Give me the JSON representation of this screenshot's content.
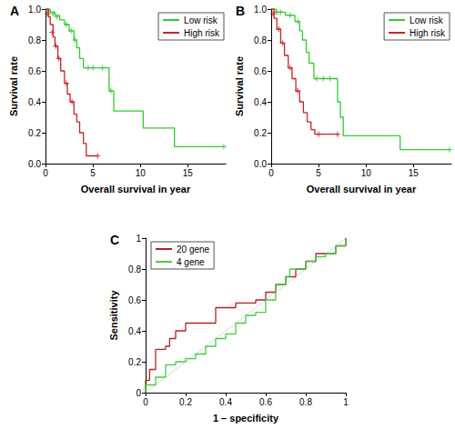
{
  "chart_data": [
    {
      "type": "line",
      "title": "A",
      "line_style": "step",
      "grid": false,
      "legend": "top-right",
      "xlabel": "Overall survival in year",
      "ylabel": "Survival rate",
      "xlim": [
        0,
        19
      ],
      "xticks": [
        0,
        5,
        10,
        15
      ],
      "ylim": [
        0,
        1
      ],
      "yticks": [
        {
          "value": 0,
          "label": "0.0"
        },
        0.2,
        0.4,
        0.6,
        0.8,
        {
          "value": 1,
          "label": "1.0"
        }
      ],
      "series": [
        {
          "name": "Low risk",
          "color": "#33cc33",
          "marker": "plus",
          "x": [
            0,
            0.5,
            1,
            1.5,
            2,
            2.5,
            3,
            3.3,
            3.6,
            4,
            6.7,
            7.2,
            10.3,
            13.6,
            18.8
          ],
          "values": [
            1,
            0.98,
            0.96,
            0.93,
            0.9,
            0.86,
            0.8,
            0.75,
            0.68,
            0.62,
            0.47,
            0.34,
            0.23,
            0.11,
            0.11
          ],
          "censored": [
            [
              0.3,
              0.99
            ],
            [
              0.8,
              0.97
            ],
            [
              1.2,
              0.95
            ],
            [
              2.2,
              0.9
            ],
            [
              2.7,
              0.86
            ],
            [
              3.1,
              0.8
            ],
            [
              4.5,
              0.62
            ],
            [
              5,
              0.62
            ],
            [
              6,
              0.62
            ],
            [
              6.9,
              0.47
            ],
            [
              18.8,
              0.11
            ]
          ]
        },
        {
          "name": "High risk",
          "color": "#cc2222",
          "marker": "plus",
          "x": [
            0,
            0.3,
            0.5,
            0.8,
            1,
            1.3,
            1.6,
            2,
            2.3,
            2.6,
            3,
            3.3,
            3.6,
            4,
            4.3,
            5.5
          ],
          "values": [
            1,
            0.95,
            0.9,
            0.82,
            0.76,
            0.68,
            0.6,
            0.52,
            0.45,
            0.4,
            0.32,
            0.27,
            0.2,
            0.13,
            0.05,
            0.05
          ],
          "censored": [
            [
              0.2,
              0.97
            ],
            [
              0.7,
              0.85
            ],
            [
              1.1,
              0.76
            ],
            [
              1.4,
              0.68
            ],
            [
              2.2,
              0.52
            ],
            [
              2.8,
              0.4
            ],
            [
              5.5,
              0.05
            ]
          ]
        }
      ]
    },
    {
      "type": "line",
      "title": "B",
      "line_style": "step",
      "grid": false,
      "legend": "top-right",
      "xlabel": "Overall survival in year",
      "ylabel": "Survival rate",
      "xlim": [
        0,
        19
      ],
      "xticks": [
        0,
        5,
        10,
        15
      ],
      "ylim": [
        0,
        1
      ],
      "yticks": [
        {
          "value": 0,
          "label": "0.0"
        },
        0.2,
        0.4,
        0.6,
        0.8,
        {
          "value": 1,
          "label": "1.0"
        }
      ],
      "series": [
        {
          "name": "Low risk",
          "color": "#33cc33",
          "marker": "plus",
          "x": [
            0,
            0.5,
            1.5,
            2.5,
            3,
            3.3,
            3.7,
            4,
            4.5,
            7,
            7.3,
            7.6,
            13.6,
            18.8
          ],
          "values": [
            1,
            0.98,
            0.96,
            0.92,
            0.86,
            0.8,
            0.72,
            0.65,
            0.55,
            0.4,
            0.3,
            0.18,
            0.09,
            0.09
          ],
          "censored": [
            [
              0.6,
              0.98
            ],
            [
              1,
              0.98
            ],
            [
              2,
              0.96
            ],
            [
              2.8,
              0.92
            ],
            [
              4.8,
              0.55
            ],
            [
              5.5,
              0.55
            ],
            [
              6.2,
              0.55
            ],
            [
              18.8,
              0.09
            ]
          ]
        },
        {
          "name": "High risk",
          "color": "#cc2222",
          "marker": "plus",
          "x": [
            0,
            0.3,
            0.6,
            1,
            1.4,
            1.8,
            2.2,
            2.6,
            3,
            3.4,
            3.8,
            4.2,
            4.6,
            7
          ],
          "values": [
            1,
            0.94,
            0.87,
            0.78,
            0.7,
            0.62,
            0.55,
            0.47,
            0.4,
            0.33,
            0.27,
            0.22,
            0.19,
            0.19
          ],
          "censored": [
            [
              0.2,
              0.97
            ],
            [
              0.8,
              0.87
            ],
            [
              1.2,
              0.78
            ],
            [
              2,
              0.62
            ],
            [
              2.8,
              0.47
            ],
            [
              5,
              0.19
            ],
            [
              7,
              0.19
            ]
          ]
        }
      ]
    },
    {
      "type": "line",
      "title": "C",
      "line_style": "step",
      "grid": false,
      "legend": "top-left",
      "xlabel": "1 – specificity",
      "ylabel": "Sensitivity",
      "xlim": [
        0,
        1
      ],
      "xticks": [
        0,
        0.2,
        0.4,
        0.6,
        0.8,
        1
      ],
      "ylim": [
        0,
        1
      ],
      "yticks": [
        0,
        0.2,
        0.4,
        0.6,
        0.8,
        1
      ],
      "series": [
        {
          "color": "#cccccc",
          "line_style": "dotted",
          "x": [
            0,
            1
          ],
          "values": [
            0,
            1
          ]
        },
        {
          "name": "20 gene",
          "color": "#b22222",
          "x": [
            0,
            0,
            0.02,
            0.05,
            0.05,
            0.1,
            0.12,
            0.15,
            0.2,
            0.3,
            0.35,
            0.45,
            0.55,
            0.6,
            0.65,
            0.7,
            0.75,
            0.8,
            0.85,
            0.9,
            0.95,
            1
          ],
          "values": [
            0,
            0.08,
            0.15,
            0.2,
            0.28,
            0.3,
            0.35,
            0.4,
            0.45,
            0.45,
            0.55,
            0.58,
            0.6,
            0.65,
            0.7,
            0.75,
            0.8,
            0.85,
            0.9,
            0.9,
            0.95,
            1
          ]
        },
        {
          "name": "4 gene",
          "color": "#44cc44",
          "x": [
            0,
            0,
            0.05,
            0.1,
            0.15,
            0.2,
            0.25,
            0.3,
            0.35,
            0.4,
            0.45,
            0.5,
            0.55,
            0.6,
            0.65,
            0.7,
            0.72,
            0.8,
            0.85,
            0.9,
            0.95,
            1
          ],
          "values": [
            0,
            0.05,
            0.1,
            0.18,
            0.2,
            0.22,
            0.25,
            0.3,
            0.35,
            0.38,
            0.45,
            0.5,
            0.52,
            0.6,
            0.7,
            0.75,
            0.8,
            0.85,
            0.88,
            0.9,
            0.95,
            1
          ]
        }
      ]
    }
  ]
}
